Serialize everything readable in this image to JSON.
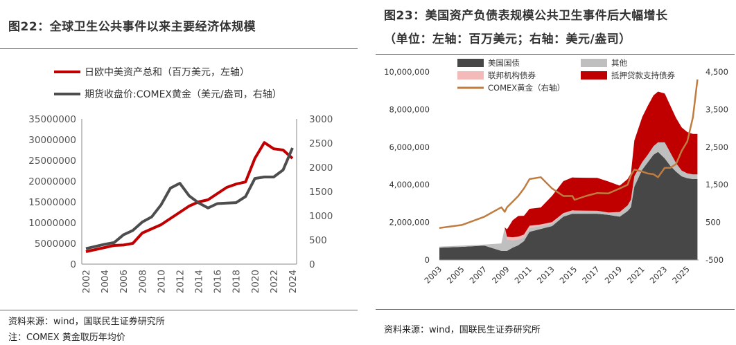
{
  "left": {
    "title": "图22：全球卫生公共事件以来主要经济体规模",
    "source": "资料来源：wind，国联民生证券研究所",
    "note": "注：COMEX 黄金取历年均价",
    "chart_data": {
      "type": "line",
      "x": [
        2002,
        2003,
        2004,
        2005,
        2006,
        2007,
        2008,
        2009,
        2010,
        2011,
        2012,
        2013,
        2014,
        2015,
        2016,
        2017,
        2018,
        2019,
        2020,
        2021,
        2022,
        2023,
        2024
      ],
      "x_ticks": [
        "2002",
        "2004",
        "2006",
        "2008",
        "2010",
        "2012",
        "2014",
        "2016",
        "2018",
        "2020",
        "2022",
        "2024"
      ],
      "series": [
        {
          "name": "日欧中美资产总和（百万美元，左轴）",
          "axis": "left",
          "color": "#c00000",
          "values": [
            3000000,
            3500000,
            4000000,
            4500000,
            4600000,
            5000000,
            7500000,
            8500000,
            9500000,
            11000000,
            12500000,
            14000000,
            15000000,
            15500000,
            17000000,
            18500000,
            19300000,
            19800000,
            25500000,
            29300000,
            27800000,
            27500000,
            25500000
          ]
        },
        {
          "name": "期货收盘价:COMEX黄金（美元/盎司，右轴）",
          "axis": "right",
          "color": "#4d4d4d",
          "values": [
            320,
            365,
            410,
            445,
            605,
            695,
            870,
            975,
            1225,
            1570,
            1670,
            1410,
            1265,
            1160,
            1250,
            1260,
            1270,
            1395,
            1770,
            1800,
            1800,
            1945,
            2400
          ]
        }
      ],
      "y_left": {
        "lim": [
          0,
          35000000
        ],
        "ticks": [
          "0",
          "5000000",
          "10000000",
          "15000000",
          "20000000",
          "25000000",
          "30000000",
          "35000000"
        ]
      },
      "y_right": {
        "lim": [
          0,
          3000
        ],
        "ticks": [
          "0",
          "500",
          "1000",
          "1500",
          "2000",
          "2500",
          "3000"
        ]
      }
    }
  },
  "right": {
    "title_line1": "图23：美国资产负债表规模公共卫生事件后大幅增长",
    "title_line2": "（单位：左轴：百万美元；右轴：美元/盎司）",
    "source": "资料来源：wind，国联民生证券研究所",
    "chart_data": {
      "type": "area",
      "x": [
        2003.0,
        2005.0,
        2007.0,
        2008.5,
        2008.8,
        2009.0,
        2009.5,
        2010.0,
        2010.5,
        2011.0,
        2012.0,
        2013.0,
        2014.0,
        2014.8,
        2015.0,
        2016.0,
        2017.0,
        2018.0,
        2019.0,
        2019.7,
        2020.0,
        2020.3,
        2021.0,
        2021.5,
        2022.0,
        2022.4,
        2023.0,
        2023.5,
        2024.0,
        2024.5,
        2025.0,
        2025.5,
        2025.9
      ],
      "x_ticks": [
        "2003",
        "2005",
        "2007",
        "2009",
        "2011",
        "2013",
        "2015",
        "2017",
        "2019",
        "2021",
        "2023",
        "2025"
      ],
      "series": [
        {
          "name": "美国国债",
          "color": "#474747",
          "values": [
            650000,
            700000,
            760000,
            480000,
            480000,
            480000,
            650000,
            780000,
            1000000,
            1500000,
            1650000,
            1800000,
            2300000,
            2460000,
            2460000,
            2460000,
            2460000,
            2400000,
            2300000,
            2600000,
            2800000,
            3900000,
            4800000,
            5200000,
            5600000,
            5750000,
            5400000,
            5000000,
            4700000,
            4450000,
            4350000,
            4300000,
            4300000
          ]
        },
        {
          "name": "其他",
          "color": "#bfbfbf",
          "values": [
            60000,
            60000,
            60000,
            400000,
            1200000,
            600000,
            400000,
            300000,
            200000,
            200000,
            150000,
            150000,
            150000,
            150000,
            150000,
            150000,
            150000,
            120000,
            250000,
            300000,
            400000,
            550000,
            400000,
            400000,
            450000,
            500000,
            850000,
            700000,
            450000,
            300000,
            250000,
            250000,
            250000
          ]
        },
        {
          "name": "联邦机构债券",
          "color": "#f4b9b9",
          "values": [
            0,
            0,
            0,
            0,
            50000,
            150000,
            160000,
            160000,
            150000,
            120000,
            90000,
            60000,
            40000,
            30000,
            20000,
            10000,
            5000,
            2000,
            2000,
            2000,
            2000,
            2000,
            2000,
            2000,
            2000,
            2000,
            2000,
            2000,
            2000,
            2000,
            2000,
            2000,
            2000
          ]
        },
        {
          "name": "抵押贷款支持债券",
          "color": "#c00000",
          "values": [
            0,
            0,
            0,
            0,
            0,
            400000,
            900000,
            1100000,
            1000000,
            900000,
            900000,
            1400000,
            1700000,
            1750000,
            1750000,
            1750000,
            1750000,
            1650000,
            1400000,
            1400000,
            1400000,
            1900000,
            2400000,
            2600000,
            2700000,
            2700000,
            2600000,
            2500000,
            2400000,
            2300000,
            2200000,
            2150000,
            2150000
          ]
        },
        {
          "name": "COMEX黄金（右轴）",
          "axis": "right",
          "color": "#c07b3f",
          "values": [
            350,
            430,
            650,
            900,
            780,
            900,
            1050,
            1200,
            1400,
            1650,
            1700,
            1400,
            1200,
            1200,
            1100,
            1200,
            1280,
            1270,
            1400,
            1500,
            1750,
            1900,
            1850,
            1800,
            1780,
            1700,
            1950,
            1950,
            2050,
            2400,
            2650,
            3300,
            4300
          ]
        }
      ],
      "y_left": {
        "lim": [
          0,
          10000000
        ],
        "ticks": [
          "0",
          "2,000,000",
          "4,000,000",
          "6,000,000",
          "8,000,000",
          "10,000,000"
        ]
      },
      "y_right": {
        "lim": [
          -500,
          4500
        ],
        "ticks": [
          "-500",
          "500",
          "1,500",
          "2,500",
          "3,500",
          "4,500"
        ]
      }
    }
  }
}
